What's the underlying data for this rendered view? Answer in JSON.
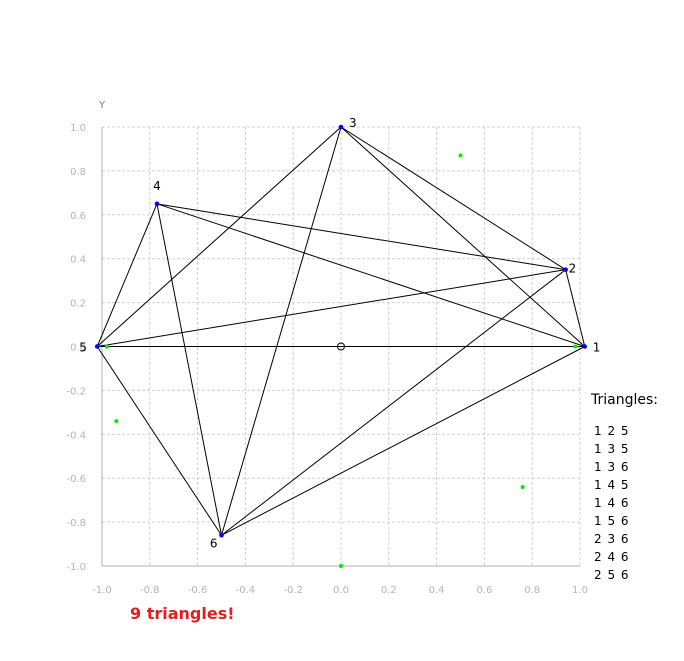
{
  "chart_data": {
    "type": "scatter",
    "ylabel": "Y",
    "xlabel": "",
    "xlim": [
      -1.0,
      1.0
    ],
    "ylim": [
      -1.0,
      1.0
    ],
    "grid": true,
    "x_ticks": [
      "-1.0",
      "-0.8",
      "-0.6",
      "-0.4",
      "-0.2",
      "0.0",
      "0.2",
      "0.4",
      "0.6",
      "0.8",
      "1.0"
    ],
    "y_ticks": [
      "1.0",
      "0.8",
      "0.6",
      "0.4",
      "0.2",
      "0.0",
      "-0.2",
      "-0.4",
      "-0.6",
      "-0.8",
      "-1.0"
    ],
    "vertex_color": "#0000ff",
    "green_point_color": "#00ee00",
    "edge_color": "#000000",
    "vertices": [
      {
        "label": "1",
        "x": 1.02,
        "y": 0.0
      },
      {
        "label": "2",
        "x": 0.94,
        "y": 0.35
      },
      {
        "label": "3",
        "x": 0.0,
        "y": 1.0
      },
      {
        "label": "4",
        "x": -0.77,
        "y": 0.65
      },
      {
        "label": "5",
        "x": -1.02,
        "y": 0.0
      },
      {
        "label": "6",
        "x": -0.5,
        "y": -0.86
      }
    ],
    "edges": [
      [
        "1",
        "2"
      ],
      [
        "1",
        "3"
      ],
      [
        "1",
        "4"
      ],
      [
        "1",
        "5"
      ],
      [
        "1",
        "6"
      ],
      [
        "2",
        "3"
      ],
      [
        "2",
        "4"
      ],
      [
        "2",
        "5"
      ],
      [
        "2",
        "6"
      ],
      [
        "3",
        "5"
      ],
      [
        "3",
        "6"
      ],
      [
        "4",
        "5"
      ],
      [
        "4",
        "6"
      ],
      [
        "5",
        "6"
      ]
    ],
    "green_points": [
      {
        "x": 0.5,
        "y": 0.87
      },
      {
        "x": 0.98,
        "y": 0.0
      },
      {
        "x": 0.76,
        "y": -0.64
      },
      {
        "x": 0.0,
        "y": -1.0
      },
      {
        "x": -0.94,
        "y": -0.34
      },
      {
        "x": -0.98,
        "y": 0.0
      }
    ],
    "origin_marker": {
      "x": 0.0,
      "y": 0.0
    }
  },
  "triangles": {
    "title": "Triangles:",
    "items": [
      "1 2 5",
      "1 3 5",
      "1 3 6",
      "1 4 5",
      "1 4 6",
      "1 5 6",
      "2 3 6",
      "2 4 6",
      "2 5 6"
    ]
  },
  "summary": "9 triangles!"
}
